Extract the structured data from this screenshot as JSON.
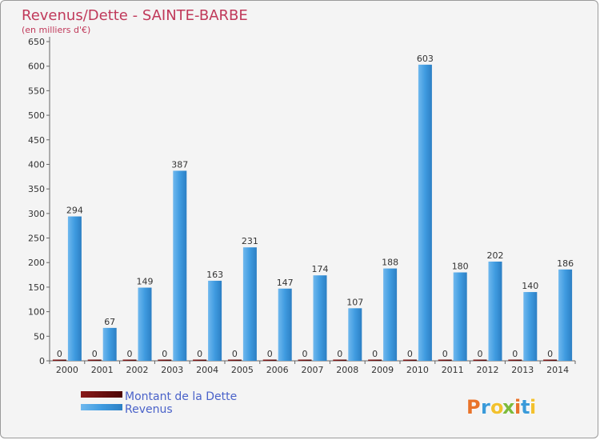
{
  "chart_data": {
    "type": "bar",
    "title": "Revenus/Dette - SAINTE-BARBE",
    "subtitle": "(en milliers d'€)",
    "categories": [
      "2000",
      "2001",
      "2002",
      "2003",
      "2004",
      "2005",
      "2006",
      "2007",
      "2008",
      "2009",
      "2010",
      "2011",
      "2012",
      "2013",
      "2014"
    ],
    "series": [
      {
        "name": "Montant de la Dette",
        "color": "#6b0a0a",
        "values": [
          0,
          0,
          0,
          0,
          0,
          0,
          0,
          0,
          0,
          0,
          0,
          0,
          0,
          0,
          0
        ]
      },
      {
        "name": "Revenus",
        "color": "#3f9be0",
        "values": [
          294,
          67,
          149,
          387,
          163,
          231,
          147,
          174,
          107,
          188,
          603,
          180,
          202,
          140,
          186
        ]
      }
    ],
    "ylim": [
      0,
      650
    ],
    "yticks": [
      0,
      50,
      100,
      150,
      200,
      250,
      300,
      350,
      400,
      450,
      500,
      550,
      600,
      650
    ],
    "grid": false,
    "legend_position": "bottom-left",
    "brand": {
      "text": "Proxiti",
      "colors": [
        "#e8732a",
        "#3a9ad9",
        "#f2c12e",
        "#7dbb3c"
      ]
    }
  }
}
